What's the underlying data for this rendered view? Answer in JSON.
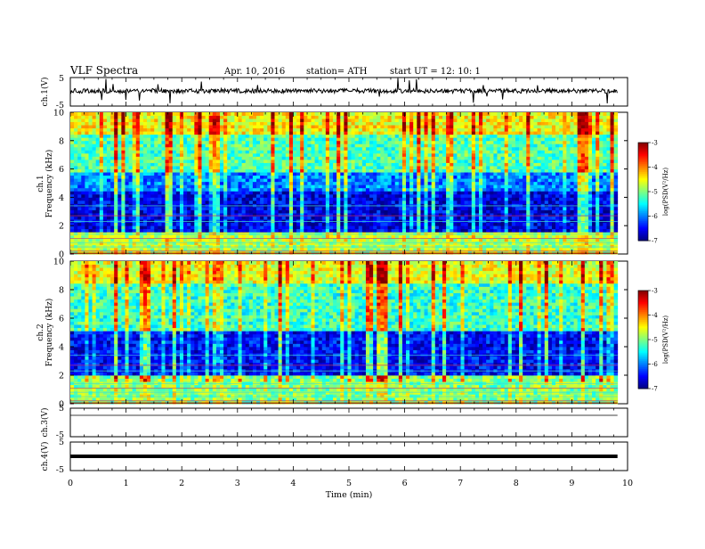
{
  "header": {
    "title": "VLF  Spectra",
    "date": "Apr. 10, 2016",
    "station": "station= ATH",
    "start": "start  UT  =    12: 10: 1"
  },
  "chart_data": [
    {
      "type": "line",
      "ylabel": "ch.1(V)",
      "ylim": [
        -5,
        5
      ],
      "yticks": [
        "5",
        "-5"
      ],
      "trace": "noisy waveform centred near 0 V with frequent sferic spikes"
    },
    {
      "type": "heatmap",
      "ylabel": "ch.1\nFrequency  (kHz)",
      "ylim": [
        0,
        10
      ],
      "yticks": [
        "0",
        "2",
        "4",
        "6",
        "8",
        "10"
      ],
      "xlim": [
        0,
        10
      ],
      "colorbar": {
        "label": "log(PSD(V²/Hz)",
        "range": [
          -7,
          -3
        ],
        "ticks": [
          "-3",
          "-4",
          "-5",
          "-6",
          "-7"
        ]
      },
      "bands_khz": [
        {
          "from": 0.0,
          "to": 1.6,
          "level": -4.8
        },
        {
          "from": 1.6,
          "to": 4.5,
          "level": -6.6
        },
        {
          "from": 4.5,
          "to": 5.8,
          "level": -6.0
        },
        {
          "from": 5.8,
          "to": 8.5,
          "level": -5.2
        },
        {
          "from": 8.5,
          "to": 10.0,
          "level": -4.5
        }
      ]
    },
    {
      "type": "heatmap",
      "ylabel": "ch.2\nFrequency  (kHz)",
      "ylim": [
        0,
        10
      ],
      "yticks": [
        "0",
        "2",
        "4",
        "6",
        "8",
        "10"
      ],
      "xlim": [
        0,
        10
      ],
      "colorbar": {
        "label": "log(PSD(V²/Hz)",
        "range": [
          -7,
          -3
        ],
        "ticks": [
          "-3",
          "-4",
          "-5",
          "-6",
          "-7"
        ]
      },
      "bands_khz": [
        {
          "from": 0.0,
          "to": 2.0,
          "level": -5.0
        },
        {
          "from": 2.0,
          "to": 5.2,
          "level": -6.5
        },
        {
          "from": 5.2,
          "to": 8.5,
          "level": -5.3
        },
        {
          "from": 8.5,
          "to": 10.0,
          "level": -4.6
        }
      ]
    },
    {
      "type": "line",
      "ylabel": "ch.3(V)",
      "ylim": [
        -5,
        5
      ],
      "yticks": [
        "5",
        "-5"
      ],
      "trace": "flat line near 0 V"
    },
    {
      "type": "line",
      "ylabel": "ch.4(V)",
      "ylim": [
        -5,
        5
      ],
      "yticks": [
        "5",
        "-5"
      ],
      "trace": "thick flat band near 0 V"
    }
  ],
  "xaxis": {
    "label": "Time  (min)",
    "range": [
      0,
      10
    ],
    "ticks": [
      "0",
      "1",
      "2",
      "3",
      "4",
      "5",
      "6",
      "7",
      "8",
      "9",
      "10"
    ],
    "data_end": 9.82
  }
}
